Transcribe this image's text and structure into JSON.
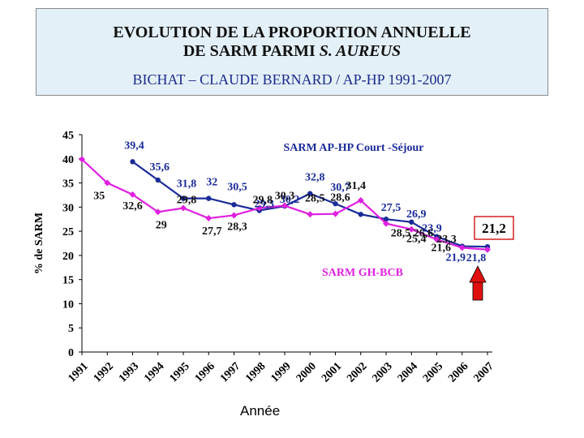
{
  "title": {
    "line1": "EVOLUTION DE LA PROPORTION ANNUELLE",
    "line2_prefix": "DE SARM PARMI ",
    "line2_italic": "S. AUREUS",
    "line3": "BICHAT – CLAUDE BERNARD / AP-HP   1991-2007"
  },
  "chart_data": {
    "type": "line",
    "ylabel": "% de SARM",
    "xlabel": "Année",
    "ylim": [
      0,
      45
    ],
    "yticks": [
      0,
      5,
      10,
      15,
      20,
      25,
      30,
      35,
      40,
      45
    ],
    "categories": [
      "1991",
      "1992",
      "1993",
      "1994",
      "1995",
      "1996",
      "1997",
      "1998",
      "1999",
      "2000",
      "2001",
      "2002",
      "2003",
      "2004",
      "2005",
      "2006",
      "2007"
    ],
    "series": [
      {
        "name": "SARM AP-HP Court -Séjour",
        "color": "#1a2b9a",
        "marker": "circle",
        "values": [
          null,
          null,
          39.4,
          35.6,
          31.8,
          31.8,
          30.5,
          29.3,
          30.2,
          32.8,
          30.7,
          28.5,
          27.5,
          26.9,
          23.9,
          21.9,
          21.8
        ],
        "labels": [
          "",
          "",
          "39,4",
          "35,6",
          "31,8",
          "32",
          "30,5",
          "29,3",
          "30,2",
          "32,8",
          "30,7",
          "",
          "27,5",
          "26,9",
          "23,9",
          "21,9",
          "21,8"
        ]
      },
      {
        "name": "SARM GH-BCB",
        "color": "#e020e0",
        "marker": "diamond",
        "values": [
          39.9,
          35.0,
          32.6,
          29.0,
          29.8,
          27.7,
          28.3,
          29.8,
          30.3,
          28.5,
          28.6,
          31.4,
          26.6,
          25.4,
          23.3,
          21.6,
          21.2
        ],
        "labels": [
          "",
          "35",
          "32,6",
          "29",
          "29,8",
          "27,7",
          "28,3",
          "29,8",
          "30,3",
          "28,5",
          "28,6",
          "31,4",
          "28,5  26,6",
          "25,4",
          "23,3",
          "21,6",
          ""
        ]
      }
    ],
    "highlight": {
      "label": "21,2",
      "arrow_color": "#e01010"
    }
  }
}
